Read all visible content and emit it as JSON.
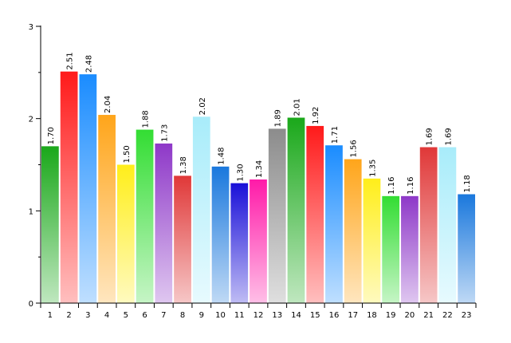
{
  "chart_data": {
    "type": "bar",
    "title": "",
    "xlabel": "",
    "ylabel": "",
    "ylim": [
      0,
      3
    ],
    "y_ticks": [
      "0",
      "1",
      "2",
      "3"
    ],
    "grid": false,
    "legend": "none",
    "categories": [
      "1",
      "2",
      "3",
      "4",
      "5",
      "6",
      "7",
      "8",
      "9",
      "10",
      "11",
      "12",
      "13",
      "14",
      "15",
      "16",
      "17",
      "18",
      "19",
      "20",
      "21",
      "22",
      "23"
    ],
    "values": [
      1.7,
      2.51,
      2.48,
      2.04,
      1.5,
      1.88,
      1.73,
      1.38,
      2.02,
      1.48,
      1.3,
      1.34,
      1.89,
      2.01,
      1.92,
      1.71,
      1.56,
      1.35,
      1.16,
      1.16,
      1.69,
      1.69,
      1.18
    ],
    "value_labels": [
      "1.70",
      "2.51",
      "2.48",
      "2.04",
      "1.50",
      "1.88",
      "1.73",
      "1.38",
      "2.02",
      "1.48",
      "1.30",
      "1.34",
      "1.89",
      "2.01",
      "1.92",
      "1.71",
      "1.56",
      "1.35",
      "1.16",
      "1.16",
      "1.69",
      "1.69",
      "1.18"
    ],
    "colors": [
      "#1aa81a",
      "#ff1a1a",
      "#1a8cff",
      "#ffa51a",
      "#ffee1a",
      "#33dd33",
      "#8e38c8",
      "#e03838",
      "#a8ecfa",
      "#1a78dd",
      "#1a10d8",
      "#ff1aa8",
      "#8c8c8c",
      "#1aa81a",
      "#ff1a1a",
      "#1a8cff",
      "#ffa51a",
      "#ffee1a",
      "#33dd33",
      "#8e38c8",
      "#e03838",
      "#a8ecfa",
      "#1a78dd"
    ]
  }
}
